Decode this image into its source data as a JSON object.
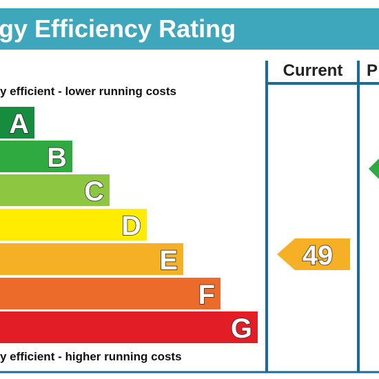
{
  "header": {
    "title": "gy Efficiency Rating"
  },
  "columns": {
    "current": "Current",
    "potential": "P"
  },
  "top_note": "y efficient - lower running costs",
  "bottom_note": "y efficient - higher running costs",
  "bands": [
    {
      "letter": "A",
      "color": "#158c3e"
    },
    {
      "letter": "B",
      "color": "#2eaa40"
    },
    {
      "letter": "C",
      "color": "#8dc641"
    },
    {
      "letter": "D",
      "color": "#ffec00"
    },
    {
      "letter": "E",
      "color": "#f5b025"
    },
    {
      "letter": "F",
      "color": "#ec6a2a"
    },
    {
      "letter": "G",
      "color": "#e31d25"
    }
  ],
  "current": {
    "value": "49",
    "color": "#f5b025"
  },
  "potential": {
    "color": "#2eaa40"
  }
}
